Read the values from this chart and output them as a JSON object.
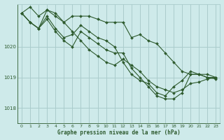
{
  "background_color": "#ceeaea",
  "grid_color": "#aacccc",
  "line_color": "#2d5a2d",
  "marker_color": "#2d5a2d",
  "title": "Graphe pression niveau de la mer (hPa)",
  "xlim": [
    -0.5,
    23.5
  ],
  "ylim": [
    1017.5,
    1021.4
  ],
  "yticks": [
    1018,
    1019,
    1020
  ],
  "xticks": [
    0,
    1,
    2,
    3,
    4,
    5,
    6,
    7,
    8,
    9,
    10,
    11,
    12,
    13,
    14,
    15,
    16,
    17,
    18,
    19,
    20,
    21,
    22,
    23
  ],
  "series": [
    [
      1021.1,
      1021.3,
      1021.0,
      1021.2,
      1021.0,
      1020.8,
      1021.0,
      1021.0,
      1021.0,
      1020.9,
      1020.8,
      1020.8,
      1020.8,
      1020.3,
      1020.4,
      1020.2,
      1020.1,
      1019.8,
      1019.5,
      1019.2,
      1019.1,
      1019.1,
      1019.0,
      1019.0
    ],
    [
      1021.1,
      1020.8,
      1020.6,
      1021.2,
      1021.1,
      1020.8,
      1020.5,
      1020.2,
      1019.9,
      1019.7,
      1019.5,
      1019.4,
      1019.6,
      1019.4,
      1019.2,
      1018.9,
      1018.7,
      1018.6,
      1018.5,
      1018.6,
      1018.8,
      1018.85,
      1018.95,
      1019.0
    ],
    [
      1021.1,
      1020.8,
      1020.6,
      1020.9,
      1020.5,
      1020.2,
      1020.0,
      1020.5,
      1020.3,
      1020.1,
      1019.9,
      1019.8,
      1019.8,
      1019.3,
      1019.0,
      1018.7,
      1018.4,
      1018.3,
      1018.3,
      1018.5,
      1019.1,
      1019.1,
      1019.1,
      1019.0
    ],
    [
      1021.1,
      1020.8,
      1020.6,
      1021.0,
      1020.6,
      1020.3,
      1020.4,
      1020.7,
      1020.5,
      1020.3,
      1020.2,
      1020.0,
      1019.5,
      1019.1,
      1018.9,
      1018.8,
      1018.5,
      1018.4,
      1018.7,
      1018.9,
      1019.2,
      1019.1,
      1019.0,
      1018.95
    ]
  ]
}
